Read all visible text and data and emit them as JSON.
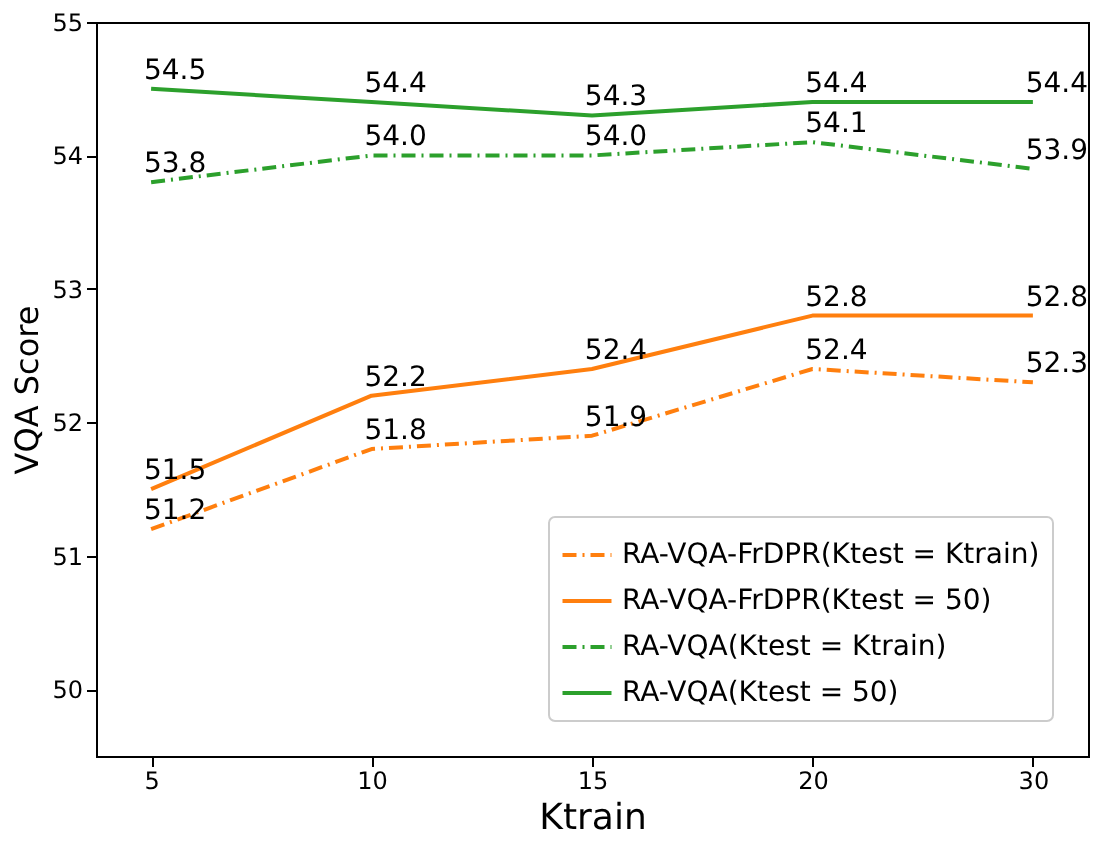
{
  "chart_data": {
    "type": "line",
    "xlabel": "Ktrain",
    "ylabel": "VQA Score",
    "categories": [
      "5",
      "10",
      "15",
      "20",
      "30"
    ],
    "series": [
      {
        "name": "RA-VQA-FrDPR(Ktest = Ktrain)",
        "color": "#ff7f0e",
        "line_style": "dashdot",
        "values": [
          51.2,
          51.8,
          51.9,
          52.4,
          52.3
        ]
      },
      {
        "name": "RA-VQA-FrDPR(Ktest = 50)",
        "color": "#ff7f0e",
        "line_style": "solid",
        "values": [
          51.5,
          52.2,
          52.4,
          52.8,
          52.8
        ]
      },
      {
        "name": "RA-VQA(Ktest = Ktrain)",
        "color": "#2ca02c",
        "line_style": "dashdot",
        "values": [
          53.8,
          54.0,
          54.0,
          54.1,
          53.9
        ],
        "value_labels": [
          "53.8",
          "54.0",
          "54.0",
          "54.1",
          "53.9"
        ]
      },
      {
        "name": "RA-VQA(Ktest = 50)",
        "color": "#2ca02c",
        "line_style": "solid",
        "values": [
          54.5,
          54.4,
          54.3,
          54.4,
          54.4
        ]
      }
    ],
    "ylim": [
      49.5,
      55
    ],
    "yticks": [
      50,
      51,
      52,
      53,
      54,
      55
    ],
    "data_labels": true,
    "legend": "bottom right",
    "grid": false
  }
}
